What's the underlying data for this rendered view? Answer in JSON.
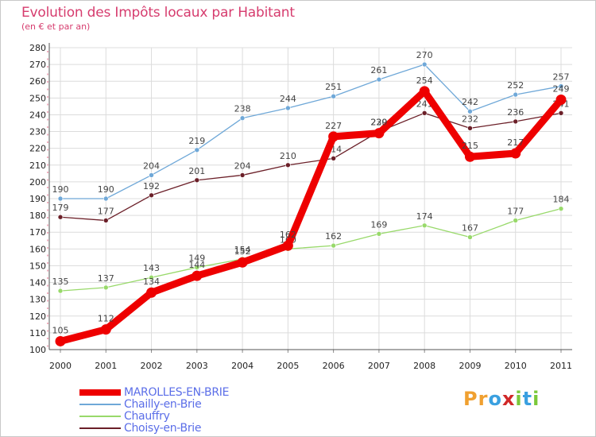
{
  "header": {
    "title": "Evolution des Impôts locaux par Habitant",
    "subtitle": "(en € et par an)"
  },
  "logo": {
    "text": "Proxiti"
  },
  "chart_data": {
    "type": "line",
    "title": "Evolution des Impôts locaux par Habitant",
    "subtitle": "(en € et par an)",
    "x": [
      "2000",
      "2001",
      "2002",
      "2003",
      "2004",
      "2005",
      "2006",
      "2007",
      "2008",
      "2009",
      "2010",
      "2011"
    ],
    "ylim": [
      100,
      280
    ],
    "yticks": [
      100,
      110,
      120,
      130,
      140,
      150,
      160,
      170,
      180,
      190,
      200,
      210,
      220,
      230,
      240,
      250,
      260,
      270,
      280
    ],
    "grid": true,
    "legend_position": "bottom-left",
    "series": [
      {
        "name": "Chailly-en-Brie",
        "color": "#6fa8d8",
        "values": [
          190,
          190,
          204,
          219,
          238,
          244,
          251,
          261,
          270,
          242,
          252,
          257
        ]
      },
      {
        "name": "Chauffry",
        "color": "#98d96a",
        "values": [
          135,
          137,
          143,
          149,
          154,
          160,
          162,
          169,
          174,
          167,
          177,
          184
        ]
      },
      {
        "name": "Choisy-en-Brie",
        "color": "#6b1f28",
        "values": [
          179,
          177,
          192,
          201,
          204,
          210,
          214,
          230,
          241,
          232,
          236,
          241
        ]
      },
      {
        "name": "MAROLLES-EN-BRIE",
        "color": "#ee0000",
        "values": [
          105,
          112,
          134,
          144,
          152,
          162,
          227,
          229,
          254,
          215,
          217,
          249
        ]
      }
    ],
    "legend": [
      "MAROLLES-EN-BRIE",
      "Chailly-en-Brie",
      "Chauffry",
      "Choisy-en-Brie"
    ]
  }
}
